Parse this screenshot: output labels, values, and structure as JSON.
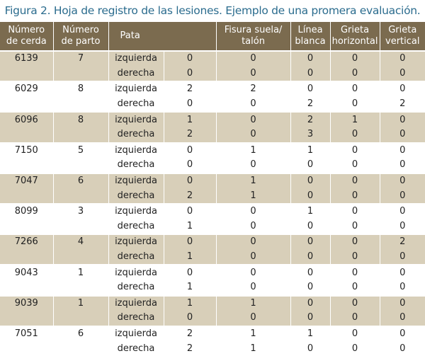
{
  "caption": "Figura 2. Hoja de registro de las lesiones. Ejemplo de una promera evaluación.",
  "table": {
    "headers": {
      "cerda_1": "Número",
      "cerda_2": "de cerda",
      "parto_1": "Número",
      "parto_2": "de parto",
      "pata": "Pata",
      "fisura_1": "Fisura suela/",
      "fisura_2": "talón",
      "linea_1": "Línea",
      "linea_2": "blanca",
      "grieta_h_1": "Grieta",
      "grieta_h_2": "horizontal",
      "grieta_v_1": "Grieta",
      "grieta_v_2": "vertical"
    },
    "rows": [
      {
        "cerda": "6139",
        "parto": "7",
        "left": {
          "pata": "izquierda",
          "erosion": "0",
          "fisura": "0",
          "linea": "0",
          "gh": "0",
          "gv": "0"
        },
        "right": {
          "pata": "derecha",
          "erosion": "0",
          "fisura": "0",
          "linea": "0",
          "gh": "0",
          "gv": "0"
        }
      },
      {
        "cerda": "6029",
        "parto": "8",
        "left": {
          "pata": "izquierda",
          "erosion": "2",
          "fisura": "2",
          "linea": "0",
          "gh": "0",
          "gv": "0"
        },
        "right": {
          "pata": "derecha",
          "erosion": "0",
          "fisura": "0",
          "linea": "2",
          "gh": "0",
          "gv": "2"
        }
      },
      {
        "cerda": "6096",
        "parto": "8",
        "left": {
          "pata": "izquierda",
          "erosion": "1",
          "fisura": "0",
          "linea": "2",
          "gh": "1",
          "gv": "0"
        },
        "right": {
          "pata": "derecha",
          "erosion": "2",
          "fisura": "0",
          "linea": "3",
          "gh": "0",
          "gv": "0"
        }
      },
      {
        "cerda": "7150",
        "parto": "5",
        "left": {
          "pata": "izquierda",
          "erosion": "0",
          "fisura": "1",
          "linea": "1",
          "gh": "0",
          "gv": "0"
        },
        "right": {
          "pata": "derecha",
          "erosion": "0",
          "fisura": "0",
          "linea": "0",
          "gh": "0",
          "gv": "0"
        }
      },
      {
        "cerda": "7047",
        "parto": "6",
        "left": {
          "pata": "izquierda",
          "erosion": "0",
          "fisura": "1",
          "linea": "0",
          "gh": "0",
          "gv": "0"
        },
        "right": {
          "pata": "derecha",
          "erosion": "2",
          "fisura": "1",
          "linea": "0",
          "gh": "0",
          "gv": "0"
        }
      },
      {
        "cerda": "8099",
        "parto": "3",
        "left": {
          "pata": "izquierda",
          "erosion": "0",
          "fisura": "0",
          "linea": "1",
          "gh": "0",
          "gv": "0"
        },
        "right": {
          "pata": "derecha",
          "erosion": "1",
          "fisura": "0",
          "linea": "0",
          "gh": "0",
          "gv": "0"
        }
      },
      {
        "cerda": "7266",
        "parto": "4",
        "left": {
          "pata": "izquierda",
          "erosion": "0",
          "fisura": "0",
          "linea": "0",
          "gh": "0",
          "gv": "2"
        },
        "right": {
          "pata": "derecha",
          "erosion": "1",
          "fisura": "0",
          "linea": "0",
          "gh": "0",
          "gv": "0"
        }
      },
      {
        "cerda": "9043",
        "parto": "1",
        "left": {
          "pata": "izquierda",
          "erosion": "0",
          "fisura": "0",
          "linea": "0",
          "gh": "0",
          "gv": "0"
        },
        "right": {
          "pata": "derecha",
          "erosion": "1",
          "fisura": "0",
          "linea": "0",
          "gh": "0",
          "gv": "0"
        }
      },
      {
        "cerda": "9039",
        "parto": "1",
        "left": {
          "pata": "izquierda",
          "erosion": "1",
          "fisura": "1",
          "linea": "0",
          "gh": "0",
          "gv": "0"
        },
        "right": {
          "pata": "derecha",
          "erosion": "0",
          "fisura": "0",
          "linea": "0",
          "gh": "0",
          "gv": "0"
        }
      },
      {
        "cerda": "7051",
        "parto": "6",
        "left": {
          "pata": "izquierda",
          "erosion": "2",
          "fisura": "1",
          "linea": "1",
          "gh": "0",
          "gv": "0"
        },
        "right": {
          "pata": "derecha",
          "erosion": "2",
          "fisura": "1",
          "linea": "0",
          "gh": "0",
          "gv": "0"
        }
      }
    ]
  }
}
